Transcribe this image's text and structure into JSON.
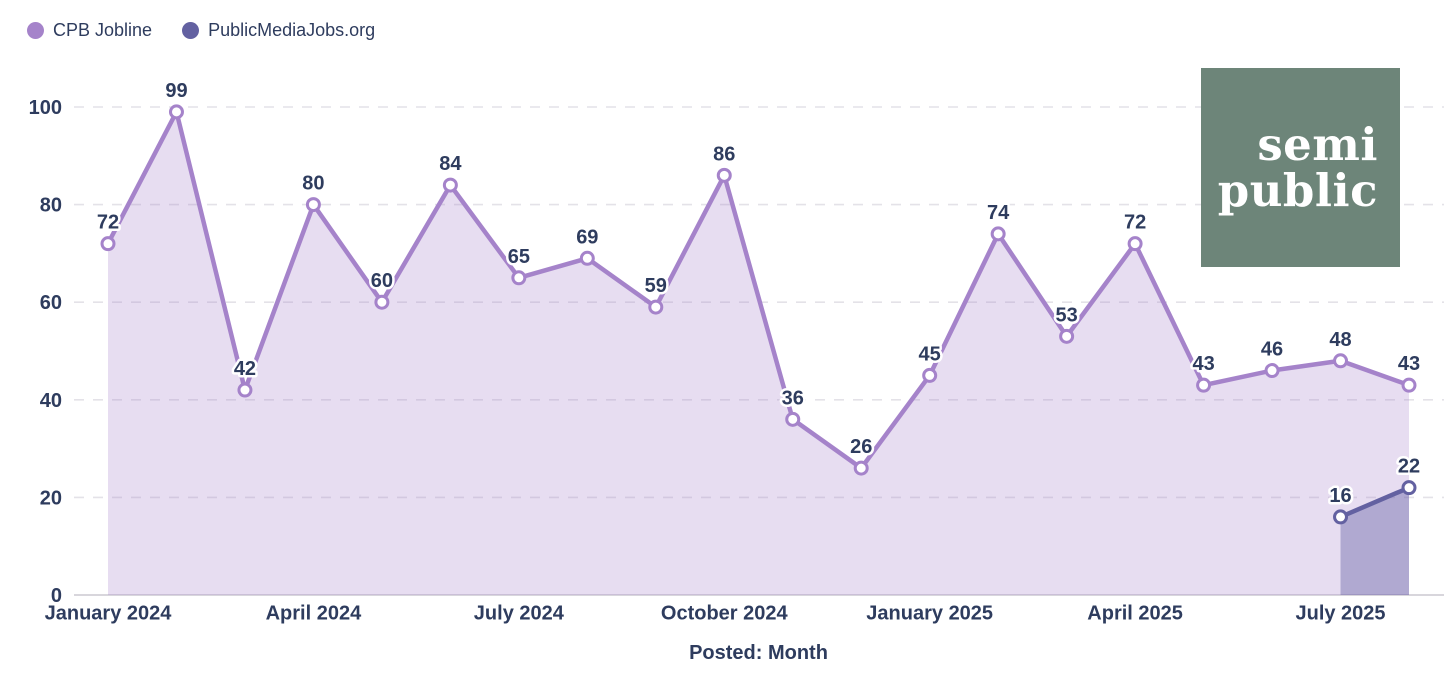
{
  "colors": {
    "cpb_line": "#a583ca",
    "cpb_fill": "#a583ca45",
    "pmj_line": "#6361a1",
    "pmj_fill": "#58559e61",
    "text": "#2e3c5e",
    "grid": "#e4e2e8",
    "axis_line": "#d8d6dc",
    "logo_bg": "#6d8579",
    "logo_text": "#ffffff"
  },
  "legend": [
    {
      "label": "CPB Jobline"
    },
    {
      "label": "PublicMediaJobs.org"
    }
  ],
  "logo": {
    "line1": "semi",
    "line2": "public"
  },
  "chart_data": {
    "type": "area",
    "x": [
      "2024-01",
      "2024-02",
      "2024-03",
      "2024-04",
      "2024-05",
      "2024-06",
      "2024-07",
      "2024-08",
      "2024-09",
      "2024-10",
      "2024-11",
      "2024-12",
      "2025-01",
      "2025-02",
      "2025-03",
      "2025-04",
      "2025-05",
      "2025-06",
      "2025-07",
      "2025-08"
    ],
    "series": [
      {
        "name": "CPB Jobline",
        "values": [
          72,
          99,
          42,
          80,
          60,
          84,
          65,
          69,
          59,
          86,
          36,
          26,
          45,
          74,
          53,
          72,
          43,
          46,
          48,
          43
        ]
      },
      {
        "name": "PublicMediaJobs.org",
        "values": [
          null,
          null,
          null,
          null,
          null,
          null,
          null,
          null,
          null,
          null,
          null,
          null,
          null,
          null,
          null,
          null,
          null,
          null,
          16,
          22
        ]
      }
    ],
    "title": "",
    "xlabel": "Posted: Month",
    "ylabel": "",
    "ylim": [
      0,
      100
    ],
    "y_ticks": [
      0,
      20,
      40,
      60,
      80,
      100
    ],
    "x_ticks": [
      {
        "index": 0,
        "label": "January 2024"
      },
      {
        "index": 3,
        "label": "April 2024"
      },
      {
        "index": 6,
        "label": "July 2024"
      },
      {
        "index": 9,
        "label": "October 2024"
      },
      {
        "index": 12,
        "label": "January 2025"
      },
      {
        "index": 15,
        "label": "April 2025"
      },
      {
        "index": 18,
        "label": "July 2025"
      }
    ],
    "grid": "dashed-horizontal",
    "legend_position": "top-left"
  }
}
